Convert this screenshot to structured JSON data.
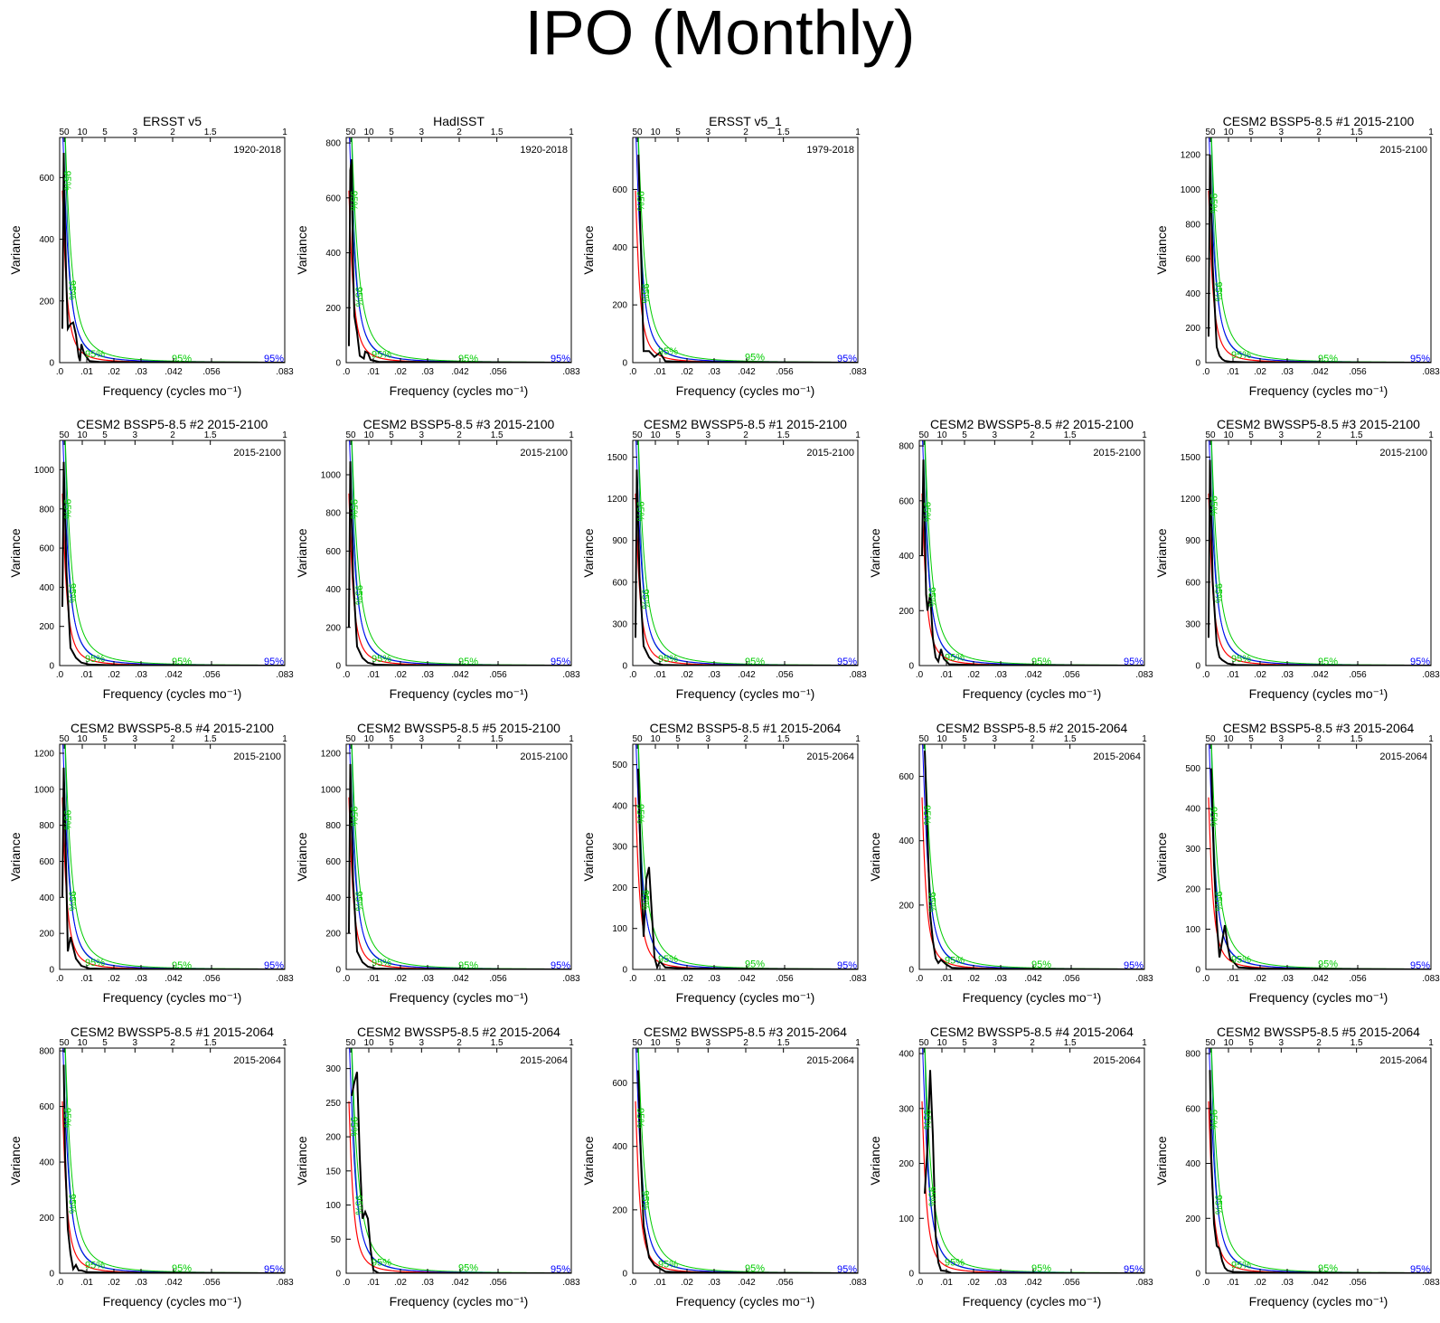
{
  "page": {
    "title": "IPO (Monthly)"
  },
  "colors": {
    "spectrum": "#000000",
    "red_noise": "#ff0000",
    "sig_90": "#0000ff",
    "sig_95": "#00cc00",
    "markov": "#008080"
  },
  "chart_data": [
    {
      "type": "line",
      "title": "ERSST v5",
      "period": "1920-2018",
      "xlabel": "Frequency (cycles mo⁻¹)",
      "ylabel": "Variance",
      "ylim": [
        0,
        730
      ],
      "yticks": [
        0,
        200,
        400,
        600
      ],
      "r0": 730,
      "spike": "ersst",
      "sig_label": "95%",
      "sig_label_90": "95%",
      "sig_ypos": [
        590,
        235,
        15,
        0,
        0
      ]
    },
    {
      "type": "line",
      "title": "HadISST",
      "period": "1920-2018",
      "xlabel": "Frequency (cycles mo⁻¹)",
      "ylabel": "Variance",
      "ylim": [
        0,
        820
      ],
      "yticks": [
        0,
        200,
        400,
        600,
        800
      ],
      "r0": 820,
      "spike": "had",
      "sig_label": "95%",
      "sig_label_90": "95%",
      "sig_ypos": [
        590,
        240,
        15,
        0,
        0
      ]
    },
    {
      "type": "line",
      "title": "ERSST v5_1",
      "period": "1979-2018",
      "xlabel": "Frequency (cycles mo⁻¹)",
      "ylabel": "Variance",
      "ylim": [
        0,
        780
      ],
      "yticks": [
        0,
        200,
        400,
        600
      ],
      "r0": 780,
      "spike": "e51",
      "sig_label": "95%",
      "sig_label_90": "95%",
      "sig_ypos": [
        560,
        240,
        25,
        5,
        0
      ]
    },
    null,
    {
      "type": "line",
      "title": "CESM2 BSSP5-8.5 #1 2015-2100",
      "period": "2015-2100",
      "xlabel": "Frequency (cycles mo⁻¹)",
      "ylabel": "Variance",
      "ylim": [
        0,
        1300
      ],
      "yticks": [
        0,
        200,
        400,
        600,
        800,
        1000,
        1200
      ],
      "r0": 1300,
      "spike": "b1",
      "sig_label": "95%",
      "sig_label_90": "95%",
      "sig_ypos": [
        920,
        410,
        20,
        0,
        0
      ]
    },
    {
      "type": "line",
      "title": "CESM2 BSSP5-8.5 #2 2015-2100",
      "period": "2015-2100",
      "xlabel": "Frequency (cycles mo⁻¹)",
      "ylabel": "Variance",
      "ylim": [
        0,
        1150
      ],
      "yticks": [
        0,
        200,
        400,
        600,
        800,
        1000
      ],
      "r0": 1150,
      "spike": "b2",
      "sig_label": "95%",
      "sig_label_90": "95%",
      "sig_ypos": [
        800,
        370,
        15,
        0,
        0
      ]
    },
    {
      "type": "line",
      "title": "CESM2 BSSP5-8.5 #3 2015-2100",
      "period": "2015-2100",
      "xlabel": "Frequency (cycles mo⁻¹)",
      "ylabel": "Variance",
      "ylim": [
        0,
        1180
      ],
      "yticks": [
        0,
        200,
        400,
        600,
        800,
        1000
      ],
      "r0": 1180,
      "spike": "b3",
      "sig_label": "95%",
      "sig_label_90": "95%",
      "sig_ypos": [
        820,
        370,
        15,
        0,
        0
      ]
    },
    {
      "type": "line",
      "title": "CESM2 BWSSP5-8.5 #1 2015-2100",
      "period": "2015-2100",
      "xlabel": "Frequency (cycles mo⁻¹)",
      "ylabel": "Variance",
      "ylim": [
        0,
        1620
      ],
      "yticks": [
        0,
        300,
        600,
        900,
        1200,
        1500
      ],
      "r0": 1620,
      "spike": "w1",
      "sig_label": "95%",
      "sig_label_90": "95%",
      "sig_ypos": [
        1110,
        480,
        20,
        0,
        0
      ]
    },
    {
      "type": "line",
      "title": "CESM2 BWSSP5-8.5 #2 2015-2100",
      "period": "2015-2100",
      "xlabel": "Frequency (cycles mo⁻¹)",
      "ylabel": "Variance",
      "ylim": [
        0,
        820
      ],
      "yticks": [
        0,
        200,
        400,
        600,
        800
      ],
      "r0": 820,
      "spike": "w2",
      "sig_label": "95%",
      "sig_label_90": "95%",
      "sig_ypos": [
        560,
        250,
        15,
        0,
        0
      ]
    },
    {
      "type": "line",
      "title": "CESM2 BWSSP5-8.5 #3 2015-2100",
      "period": "2015-2100",
      "xlabel": "Frequency (cycles mo⁻¹)",
      "ylabel": "Variance",
      "ylim": [
        0,
        1620
      ],
      "yticks": [
        0,
        300,
        600,
        900,
        1200,
        1500
      ],
      "r0": 1620,
      "spike": "w3",
      "sig_label": "95%",
      "sig_label_90": "95%",
      "sig_ypos": [
        1150,
        520,
        20,
        0,
        0
      ]
    },
    {
      "type": "line",
      "title": "CESM2 BWSSP5-8.5 #4 2015-2100",
      "period": "2015-2100",
      "xlabel": "Frequency (cycles mo⁻¹)",
      "ylabel": "Variance",
      "ylim": [
        0,
        1250
      ],
      "yticks": [
        0,
        200,
        400,
        600,
        800,
        1000,
        1200
      ],
      "r0": 1250,
      "spike": "w4",
      "sig_label": "95%",
      "sig_label_90": "95%",
      "sig_ypos": [
        830,
        380,
        15,
        0,
        0
      ]
    },
    {
      "type": "line",
      "title": "CESM2 BWSSP5-8.5 #5 2015-2100",
      "period": "2015-2100",
      "xlabel": "Frequency (cycles mo⁻¹)",
      "ylabel": "Variance",
      "ylim": [
        0,
        1250
      ],
      "yticks": [
        0,
        200,
        400,
        600,
        800,
        1000,
        1200
      ],
      "r0": 1250,
      "spike": "w5",
      "sig_label": "95%",
      "sig_label_90": "95%",
      "sig_ypos": [
        850,
        380,
        15,
        0,
        0
      ]
    },
    {
      "type": "line",
      "title": "CESM2 BSSP5-8.5 #1 2015-2064",
      "period": "2015-2064",
      "xlabel": "Frequency (cycles mo⁻¹)",
      "ylabel": "Variance",
      "ylim": [
        0,
        550
      ],
      "yticks": [
        0,
        100,
        200,
        300,
        400,
        500
      ],
      "r0": 550,
      "spike": "b1s",
      "sig_label": "95%",
      "sig_label_90": "95%",
      "sig_ypos": [
        380,
        170,
        15,
        3,
        0
      ]
    },
    {
      "type": "line",
      "title": "CESM2 BSSP5-8.5 #2 2015-2064",
      "period": "2015-2064",
      "xlabel": "Frequency (cycles mo⁻¹)",
      "ylabel": "Variance",
      "ylim": [
        0,
        700
      ],
      "yticks": [
        0,
        200,
        400,
        600
      ],
      "r0": 700,
      "spike": "b2s",
      "sig_label": "95%",
      "sig_label_90": "95%",
      "sig_ypos": [
        480,
        210,
        15,
        3,
        0
      ]
    },
    {
      "type": "line",
      "title": "CESM2 BSSP5-8.5 #3 2015-2064",
      "period": "2015-2064",
      "xlabel": "Frequency (cycles mo⁻¹)",
      "ylabel": "Variance",
      "ylim": [
        0,
        560
      ],
      "yticks": [
        0,
        100,
        200,
        300,
        400,
        500
      ],
      "r0": 560,
      "spike": "b3s",
      "sig_label": "95%",
      "sig_label_90": "95%",
      "sig_ypos": [
        380,
        170,
        15,
        3,
        0
      ]
    },
    {
      "type": "line",
      "title": "CESM2 BWSSP5-8.5 #1 2015-2064",
      "period": "2015-2064",
      "xlabel": "Frequency (cycles mo⁻¹)",
      "ylabel": "Variance",
      "ylim": [
        0,
        810
      ],
      "yticks": [
        0,
        200,
        400,
        600,
        800
      ],
      "r0": 810,
      "spike": "w1s",
      "sig_label": "95%",
      "sig_label_90": "95%",
      "sig_ypos": [
        560,
        250,
        15,
        3,
        0
      ]
    },
    {
      "type": "line",
      "title": "CESM2 BWSSP5-8.5 #2 2015-2064",
      "period": "2015-2064",
      "xlabel": "Frequency (cycles mo⁻¹)",
      "ylabel": "Variance",
      "ylim": [
        0,
        330
      ],
      "yticks": [
        0,
        50,
        100,
        150,
        200,
        250,
        300
      ],
      "r0": 330,
      "spike": "w2s",
      "sig_label": "95%",
      "sig_label_90": "95%",
      "sig_ypos": [
        215,
        100,
        10,
        2,
        0
      ]
    },
    {
      "type": "line",
      "title": "CESM2 BWSSP5-8.5 #3 2015-2064",
      "period": "2015-2064",
      "xlabel": "Frequency (cycles mo⁻¹)",
      "ylabel": "Variance",
      "ylim": [
        0,
        710
      ],
      "yticks": [
        0,
        200,
        400,
        600
      ],
      "r0": 710,
      "spike": "w3s",
      "sig_label": "95%",
      "sig_label_90": "95%",
      "sig_ypos": [
        490,
        230,
        15,
        3,
        0
      ]
    },
    {
      "type": "line",
      "title": "CESM2 BWSSP5-8.5 #4 2015-2064",
      "period": "2015-2064",
      "xlabel": "Frequency (cycles mo⁻¹)",
      "ylabel": "Variance",
      "ylim": [
        0,
        410
      ],
      "yticks": [
        0,
        100,
        200,
        300,
        400
      ],
      "r0": 410,
      "spike": "w4s",
      "sig_label": "95%",
      "sig_label_90": "95%",
      "sig_ypos": [
        280,
        140,
        12,
        2,
        0
      ]
    },
    {
      "type": "line",
      "title": "CESM2 BWSSP5-8.5 #5 2015-2064",
      "period": "2015-2064",
      "xlabel": "Frequency (cycles mo⁻¹)",
      "ylabel": "Variance",
      "ylim": [
        0,
        820
      ],
      "yticks": [
        0,
        200,
        400,
        600,
        800
      ],
      "r0": 820,
      "spike": "w5s",
      "sig_label": "95%",
      "sig_label_90": "95%",
      "sig_ypos": [
        560,
        250,
        15,
        3,
        0
      ]
    }
  ],
  "axes": {
    "x_ticks": [
      0,
      0.01,
      0.02,
      0.03,
      0.042,
      0.056,
      0.083
    ],
    "x_tick_labels": [
      ".0",
      ".01",
      ".02",
      ".03",
      ".042",
      ".056",
      ".083"
    ],
    "x_max": 0.083,
    "period_ticks": [
      50,
      10,
      5,
      3,
      2,
      1.5,
      1
    ],
    "period_tick_labels": [
      "50",
      "10",
      "5",
      "3",
      "2",
      "1.5",
      "1"
    ]
  },
  "spectra": {
    "ersst": [
      [
        0.001,
        110
      ],
      [
        0.0015,
        680
      ],
      [
        0.002,
        420
      ],
      [
        0.0025,
        250
      ],
      [
        0.003,
        110
      ],
      [
        0.004,
        125
      ],
      [
        0.005,
        130
      ],
      [
        0.006,
        90
      ],
      [
        0.007,
        20
      ],
      [
        0.0075,
        5
      ],
      [
        0.008,
        60
      ],
      [
        0.009,
        30
      ],
      [
        0.011,
        5
      ],
      [
        0.015,
        2
      ],
      [
        0.083,
        0
      ]
    ],
    "had": [
      [
        0.001,
        60
      ],
      [
        0.0015,
        700
      ],
      [
        0.002,
        740
      ],
      [
        0.0025,
        360
      ],
      [
        0.003,
        170
      ],
      [
        0.004,
        110
      ],
      [
        0.005,
        25
      ],
      [
        0.0065,
        15
      ],
      [
        0.007,
        40
      ],
      [
        0.008,
        35
      ],
      [
        0.009,
        10
      ],
      [
        0.012,
        3
      ],
      [
        0.083,
        0
      ]
    ],
    "e51": [
      [
        0.0021,
        720
      ],
      [
        0.004,
        40
      ],
      [
        0.006,
        40
      ],
      [
        0.008,
        20
      ],
      [
        0.01,
        35
      ],
      [
        0.012,
        5
      ],
      [
        0.02,
        2
      ],
      [
        0.083,
        0
      ]
    ],
    "b1": [
      [
        0.001,
        150
      ],
      [
        0.0015,
        1200
      ],
      [
        0.0025,
        560
      ],
      [
        0.004,
        90
      ],
      [
        0.005,
        40
      ],
      [
        0.006,
        20
      ],
      [
        0.007,
        10
      ],
      [
        0.009,
        5
      ],
      [
        0.015,
        2
      ],
      [
        0.083,
        0
      ]
    ],
    "b2": [
      [
        0.001,
        300
      ],
      [
        0.0015,
        1040
      ],
      [
        0.0025,
        480
      ],
      [
        0.004,
        90
      ],
      [
        0.006,
        40
      ],
      [
        0.008,
        15
      ],
      [
        0.011,
        5
      ],
      [
        0.02,
        2
      ],
      [
        0.083,
        0
      ]
    ],
    "b3": [
      [
        0.001,
        200
      ],
      [
        0.0015,
        1070
      ],
      [
        0.0025,
        470
      ],
      [
        0.004,
        100
      ],
      [
        0.006,
        40
      ],
      [
        0.008,
        15
      ],
      [
        0.011,
        5
      ],
      [
        0.02,
        2
      ],
      [
        0.083,
        0
      ]
    ],
    "w1": [
      [
        0.001,
        200
      ],
      [
        0.0015,
        1410
      ],
      [
        0.0025,
        640
      ],
      [
        0.004,
        140
      ],
      [
        0.006,
        60
      ],
      [
        0.008,
        20
      ],
      [
        0.011,
        5
      ],
      [
        0.02,
        2
      ],
      [
        0.083,
        0
      ]
    ],
    "w2": [
      [
        0.001,
        400
      ],
      [
        0.0015,
        750
      ],
      [
        0.0025,
        260
      ],
      [
        0.003,
        200
      ],
      [
        0.004,
        260
      ],
      [
        0.005,
        100
      ],
      [
        0.006,
        30
      ],
      [
        0.007,
        15
      ],
      [
        0.008,
        60
      ],
      [
        0.009,
        25
      ],
      [
        0.011,
        5
      ],
      [
        0.02,
        2
      ],
      [
        0.083,
        0
      ]
    ],
    "w3": [
      [
        0.001,
        200
      ],
      [
        0.0015,
        1480
      ],
      [
        0.0025,
        610
      ],
      [
        0.004,
        150
      ],
      [
        0.005,
        60
      ],
      [
        0.006,
        40
      ],
      [
        0.008,
        15
      ],
      [
        0.011,
        5
      ],
      [
        0.02,
        2
      ],
      [
        0.083,
        0
      ]
    ],
    "w4": [
      [
        0.001,
        400
      ],
      [
        0.0015,
        1120
      ],
      [
        0.0025,
        480
      ],
      [
        0.003,
        100
      ],
      [
        0.004,
        180
      ],
      [
        0.005,
        120
      ],
      [
        0.006,
        60
      ],
      [
        0.008,
        20
      ],
      [
        0.011,
        5
      ],
      [
        0.02,
        2
      ],
      [
        0.083,
        0
      ]
    ],
    "w5": [
      [
        0.001,
        200
      ],
      [
        0.0015,
        1140
      ],
      [
        0.0025,
        500
      ],
      [
        0.004,
        100
      ],
      [
        0.006,
        40
      ],
      [
        0.008,
        15
      ],
      [
        0.011,
        5
      ],
      [
        0.02,
        2
      ],
      [
        0.083,
        0
      ]
    ],
    "b1s": [
      [
        0.002,
        490
      ],
      [
        0.003,
        240
      ],
      [
        0.004,
        80
      ],
      [
        0.005,
        220
      ],
      [
        0.006,
        250
      ],
      [
        0.007,
        140
      ],
      [
        0.008,
        30
      ],
      [
        0.009,
        5
      ],
      [
        0.01,
        20
      ],
      [
        0.012,
        5
      ],
      [
        0.02,
        2
      ],
      [
        0.083,
        0
      ]
    ],
    "b2s": [
      [
        0.002,
        680
      ],
      [
        0.003,
        420
      ],
      [
        0.004,
        170
      ],
      [
        0.005,
        90
      ],
      [
        0.006,
        35
      ],
      [
        0.007,
        20
      ],
      [
        0.008,
        30
      ],
      [
        0.01,
        15
      ],
      [
        0.012,
        5
      ],
      [
        0.02,
        2
      ],
      [
        0.083,
        0
      ]
    ],
    "b3s": [
      [
        0.002,
        500
      ],
      [
        0.003,
        260
      ],
      [
        0.004,
        120
      ],
      [
        0.005,
        30
      ],
      [
        0.006,
        70
      ],
      [
        0.007,
        110
      ],
      [
        0.008,
        60
      ],
      [
        0.009,
        25
      ],
      [
        0.01,
        20
      ],
      [
        0.012,
        5
      ],
      [
        0.02,
        2
      ],
      [
        0.083,
        0
      ]
    ],
    "w1s": [
      [
        0.0015,
        750
      ],
      [
        0.002,
        420
      ],
      [
        0.003,
        160
      ],
      [
        0.004,
        70
      ],
      [
        0.005,
        15
      ],
      [
        0.006,
        30
      ],
      [
        0.007,
        10
      ],
      [
        0.008,
        10
      ],
      [
        0.01,
        4
      ],
      [
        0.02,
        2
      ],
      [
        0.083,
        0
      ]
    ],
    "w2s": [
      [
        0.002,
        260
      ],
      [
        0.003,
        280
      ],
      [
        0.004,
        295
      ],
      [
        0.005,
        170
      ],
      [
        0.006,
        80
      ],
      [
        0.007,
        90
      ],
      [
        0.008,
        80
      ],
      [
        0.009,
        35
      ],
      [
        0.01,
        5
      ],
      [
        0.012,
        0
      ],
      [
        0.083,
        0
      ]
    ],
    "w3s": [
      [
        0.002,
        640
      ],
      [
        0.003,
        360
      ],
      [
        0.004,
        150
      ],
      [
        0.006,
        50
      ],
      [
        0.008,
        25
      ],
      [
        0.01,
        15
      ],
      [
        0.012,
        5
      ],
      [
        0.02,
        2
      ],
      [
        0.083,
        0
      ]
    ],
    "w4s": [
      [
        0.002,
        145
      ],
      [
        0.003,
        230
      ],
      [
        0.004,
        370
      ],
      [
        0.005,
        250
      ],
      [
        0.006,
        70
      ],
      [
        0.007,
        20
      ],
      [
        0.008,
        5
      ],
      [
        0.01,
        4
      ],
      [
        0.012,
        0
      ],
      [
        0.083,
        0
      ]
    ],
    "w5s": [
      [
        0.0015,
        740
      ],
      [
        0.002,
        420
      ],
      [
        0.003,
        180
      ],
      [
        0.004,
        100
      ],
      [
        0.005,
        90
      ],
      [
        0.006,
        45
      ],
      [
        0.007,
        20
      ],
      [
        0.008,
        10
      ],
      [
        0.01,
        5
      ],
      [
        0.02,
        2
      ],
      [
        0.083,
        0
      ]
    ]
  }
}
